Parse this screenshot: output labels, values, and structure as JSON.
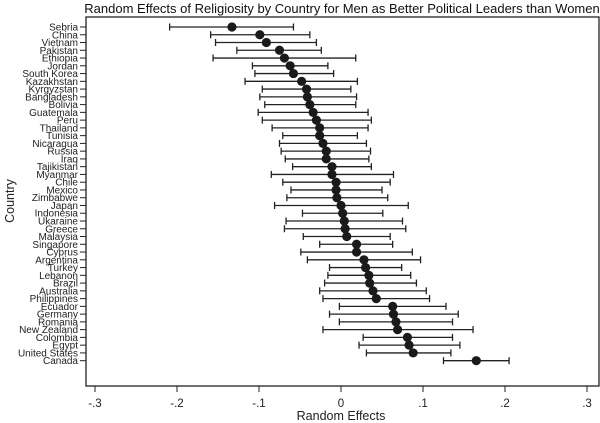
{
  "chart_data": {
    "type": "scatter",
    "subtype": "forest-plot",
    "title": "Random Effects of Religiosity by Country for Men as Better Political Leaders than Women",
    "xlabel": "Random Effects",
    "ylabel": "Country",
    "xlim": [
      -0.3,
      0.3
    ],
    "xticks": [
      -0.3,
      -0.2,
      -0.1,
      0,
      0.1,
      0.2,
      0.3
    ],
    "xtick_labels": [
      "-.3",
      "-.2",
      "-.1",
      "0",
      ".1",
      ".2",
      ".3"
    ],
    "grid": false,
    "marker_color": "#1a1a1a",
    "rows": [
      {
        "country": "Sebria",
        "estimate": -0.133,
        "lower": -0.209,
        "upper": -0.058
      },
      {
        "country": "China",
        "estimate": -0.099,
        "lower": -0.159,
        "upper": -0.038
      },
      {
        "country": "Vietnam",
        "estimate": -0.091,
        "lower": -0.153,
        "upper": -0.03
      },
      {
        "country": "Pakistan",
        "estimate": -0.075,
        "lower": -0.127,
        "upper": -0.024
      },
      {
        "country": "Ethiopia",
        "estimate": -0.069,
        "lower": -0.156,
        "upper": 0.018
      },
      {
        "country": "Jordan",
        "estimate": -0.062,
        "lower": -0.108,
        "upper": -0.016
      },
      {
        "country": "South Korea",
        "estimate": -0.058,
        "lower": -0.105,
        "upper": -0.009
      },
      {
        "country": "Kazakhstan",
        "estimate": -0.048,
        "lower": -0.117,
        "upper": 0.02
      },
      {
        "country": "Kyrgyzstan",
        "estimate": -0.042,
        "lower": -0.096,
        "upper": 0.012
      },
      {
        "country": "Bangladesh",
        "estimate": -0.041,
        "lower": -0.099,
        "upper": 0.019
      },
      {
        "country": "Bolivia",
        "estimate": -0.038,
        "lower": -0.093,
        "upper": 0.018
      },
      {
        "country": "Guatemala",
        "estimate": -0.034,
        "lower": -0.101,
        "upper": 0.033
      },
      {
        "country": "Peru",
        "estimate": -0.03,
        "lower": -0.096,
        "upper": 0.037
      },
      {
        "country": "Thailand",
        "estimate": -0.026,
        "lower": -0.084,
        "upper": 0.033
      },
      {
        "country": "Tunisia",
        "estimate": -0.026,
        "lower": -0.071,
        "upper": 0.02
      },
      {
        "country": "Nicaragua",
        "estimate": -0.022,
        "lower": -0.075,
        "upper": 0.031
      },
      {
        "country": "Russia",
        "estimate": -0.018,
        "lower": -0.073,
        "upper": 0.036
      },
      {
        "country": "Iraq",
        "estimate": -0.018,
        "lower": -0.068,
        "upper": 0.034
      },
      {
        "country": "Tajikistan",
        "estimate": -0.011,
        "lower": -0.059,
        "upper": 0.037
      },
      {
        "country": "Myanmar",
        "estimate": -0.011,
        "lower": -0.085,
        "upper": 0.064
      },
      {
        "country": "Chile",
        "estimate": -0.006,
        "lower": -0.071,
        "upper": 0.06
      },
      {
        "country": "Mexico",
        "estimate": -0.006,
        "lower": -0.061,
        "upper": 0.05
      },
      {
        "country": "Zimbabwe",
        "estimate": -0.005,
        "lower": -0.066,
        "upper": 0.057
      },
      {
        "country": "Japan",
        "estimate": 0.0,
        "lower": -0.081,
        "upper": 0.082
      },
      {
        "country": "Indonesia",
        "estimate": 0.002,
        "lower": -0.047,
        "upper": 0.051
      },
      {
        "country": "Ukaraine",
        "estimate": 0.004,
        "lower": -0.067,
        "upper": 0.075
      },
      {
        "country": "Greece",
        "estimate": 0.005,
        "lower": -0.069,
        "upper": 0.079
      },
      {
        "country": "Malaysia",
        "estimate": 0.007,
        "lower": -0.046,
        "upper": 0.06
      },
      {
        "country": "Singapore",
        "estimate": 0.019,
        "lower": -0.026,
        "upper": 0.063
      },
      {
        "country": "Cyprus",
        "estimate": 0.019,
        "lower": -0.049,
        "upper": 0.087
      },
      {
        "country": "Argentina",
        "estimate": 0.028,
        "lower": -0.041,
        "upper": 0.097
      },
      {
        "country": "Turkey",
        "estimate": 0.03,
        "lower": -0.014,
        "upper": 0.074
      },
      {
        "country": "Lebanon",
        "estimate": 0.034,
        "lower": -0.016,
        "upper": 0.085
      },
      {
        "country": "Brazil",
        "estimate": 0.035,
        "lower": -0.02,
        "upper": 0.092
      },
      {
        "country": "Australia",
        "estimate": 0.039,
        "lower": -0.026,
        "upper": 0.104
      },
      {
        "country": "Philippines",
        "estimate": 0.043,
        "lower": -0.022,
        "upper": 0.108
      },
      {
        "country": "Ecuador",
        "estimate": 0.063,
        "lower": -0.002,
        "upper": 0.128
      },
      {
        "country": "Germany",
        "estimate": 0.064,
        "lower": -0.014,
        "upper": 0.143
      },
      {
        "country": "Romania",
        "estimate": 0.067,
        "lower": -0.002,
        "upper": 0.136
      },
      {
        "country": "New Zealand",
        "estimate": 0.069,
        "lower": -0.022,
        "upper": 0.161
      },
      {
        "country": "Colombia",
        "estimate": 0.081,
        "lower": 0.027,
        "upper": 0.136
      },
      {
        "country": "Egypt",
        "estimate": 0.083,
        "lower": 0.022,
        "upper": 0.145
      },
      {
        "country": "United States",
        "estimate": 0.088,
        "lower": 0.031,
        "upper": 0.134
      },
      {
        "country": "Canada",
        "estimate": 0.165,
        "lower": 0.125,
        "upper": 0.205
      }
    ]
  }
}
